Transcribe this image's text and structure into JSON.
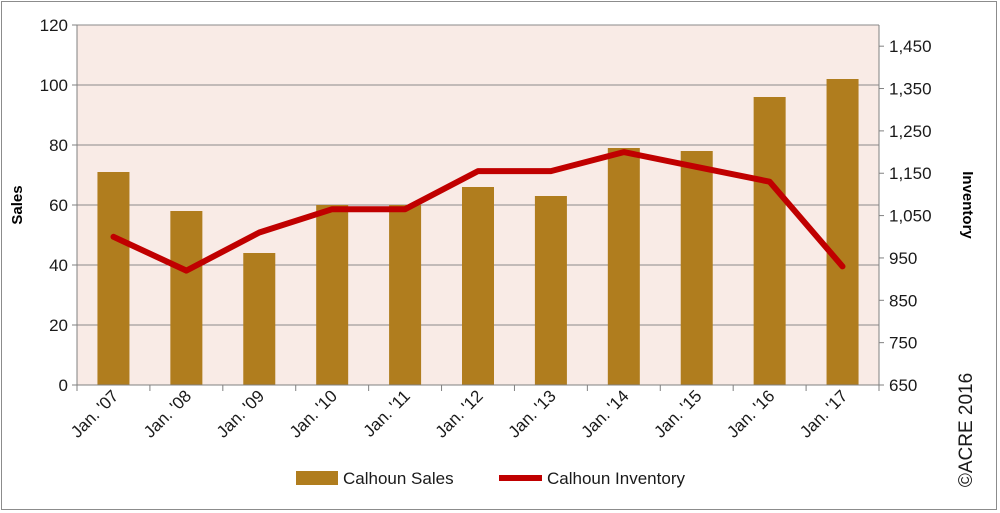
{
  "chart_data": {
    "type": "bar+line",
    "categories": [
      "Jan. '07",
      "Jan. '08",
      "Jan. '09",
      "Jan. '10",
      "Jan. '11",
      "Jan. '12",
      "Jan. '13",
      "Jan. '14",
      "Jan. '15",
      "Jan. '16",
      "Jan. '17"
    ],
    "series": [
      {
        "name": "Calhoun Sales",
        "type": "bar",
        "axis": "left",
        "color": "#b07d1e",
        "values": [
          71,
          58,
          44,
          60,
          60,
          66,
          63,
          79,
          78,
          96,
          102
        ]
      },
      {
        "name": "Calhoun Inventory",
        "type": "line",
        "axis": "right",
        "color": "#c00000",
        "values": [
          1000,
          920,
          1010,
          1065,
          1065,
          1155,
          1155,
          1200,
          1165,
          1130,
          930
        ]
      }
    ],
    "y_left": {
      "label": "Sales",
      "range": [
        0,
        120
      ],
      "ticks": [
        "0",
        "20",
        "40",
        "60",
        "80",
        "100",
        "120"
      ]
    },
    "y_right": {
      "label": "Inventory",
      "range": [
        650,
        1500
      ],
      "ticks": [
        "650",
        "750",
        "850",
        "950",
        "1,050",
        "1,150",
        "1,250",
        "1,350",
        "1,450"
      ]
    },
    "plot_background": "#f9ebe6",
    "gridlines": true,
    "legend_position": "bottom",
    "copyright": "©ACRE 2016"
  }
}
